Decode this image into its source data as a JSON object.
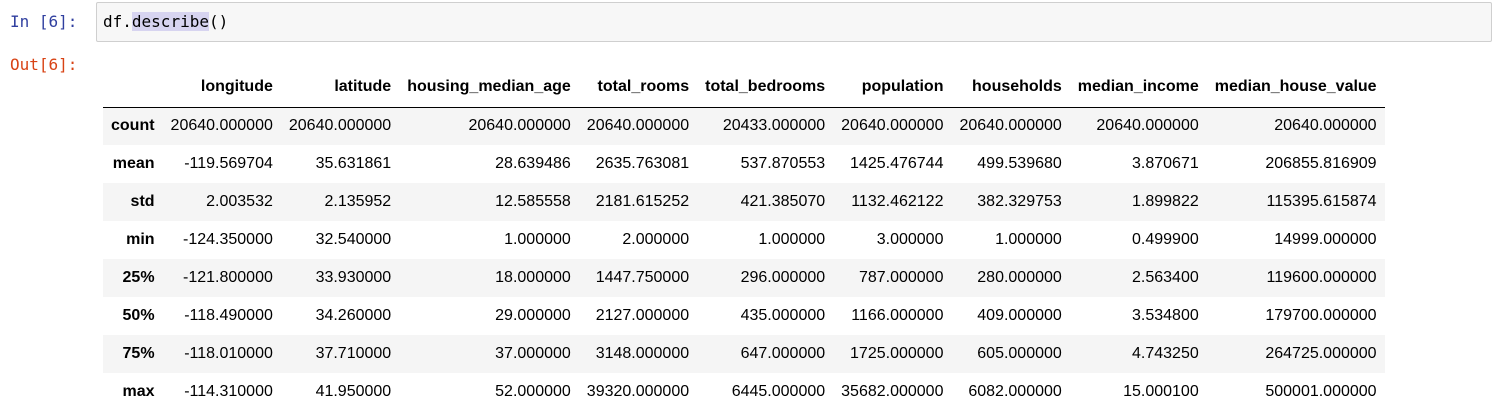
{
  "input_prompt": "In [6]:",
  "output_prompt": "Out[6]:",
  "code": {
    "prefix": "df.",
    "selected": "describe",
    "suffix": "()"
  },
  "table": {
    "columns": [
      "",
      "longitude",
      "latitude",
      "housing_median_age",
      "total_rooms",
      "total_bedrooms",
      "population",
      "households",
      "median_income",
      "median_house_value"
    ],
    "rows": [
      [
        "count",
        "20640.000000",
        "20640.000000",
        "20640.000000",
        "20640.000000",
        "20433.000000",
        "20640.000000",
        "20640.000000",
        "20640.000000",
        "20640.000000"
      ],
      [
        "mean",
        "-119.569704",
        "35.631861",
        "28.639486",
        "2635.763081",
        "537.870553",
        "1425.476744",
        "499.539680",
        "3.870671",
        "206855.816909"
      ],
      [
        "std",
        "2.003532",
        "2.135952",
        "12.585558",
        "2181.615252",
        "421.385070",
        "1132.462122",
        "382.329753",
        "1.899822",
        "115395.615874"
      ],
      [
        "min",
        "-124.350000",
        "32.540000",
        "1.000000",
        "2.000000",
        "1.000000",
        "3.000000",
        "1.000000",
        "0.499900",
        "14999.000000"
      ],
      [
        "25%",
        "-121.800000",
        "33.930000",
        "18.000000",
        "1447.750000",
        "296.000000",
        "787.000000",
        "280.000000",
        "2.563400",
        "119600.000000"
      ],
      [
        "50%",
        "-118.490000",
        "34.260000",
        "29.000000",
        "2127.000000",
        "435.000000",
        "1166.000000",
        "409.000000",
        "3.534800",
        "179700.000000"
      ],
      [
        "75%",
        "-118.010000",
        "37.710000",
        "37.000000",
        "3148.000000",
        "647.000000",
        "1725.000000",
        "605.000000",
        "4.743250",
        "264725.000000"
      ],
      [
        "max",
        "-114.310000",
        "41.950000",
        "52.000000",
        "39320.000000",
        "6445.000000",
        "35682.000000",
        "6082.000000",
        "15.000100",
        "500001.000000"
      ]
    ]
  },
  "colors": {
    "input_prompt": "#303f9f",
    "output_prompt": "#d84315",
    "selection": "#d7d4f0"
  }
}
